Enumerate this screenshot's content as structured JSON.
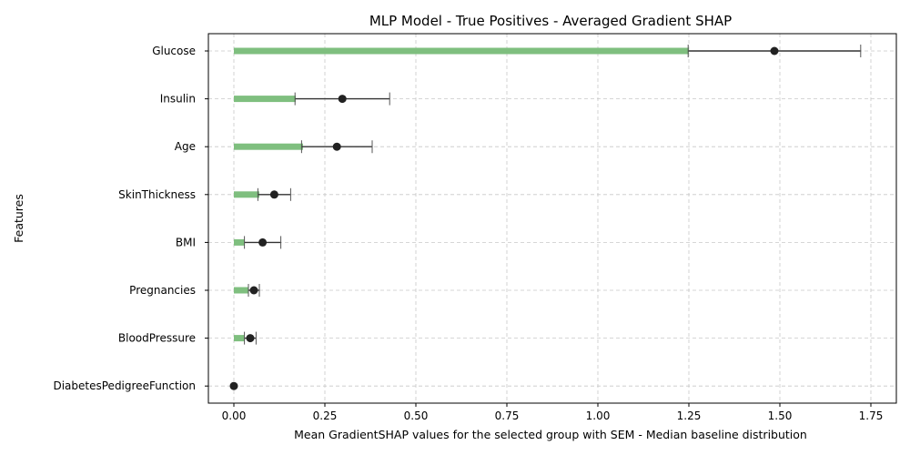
{
  "chart_data": {
    "type": "bar",
    "orientation": "horizontal",
    "title": "MLP Model - True Positives - Averaged Gradient SHAP",
    "xlabel": "Mean GradientSHAP values for the selected group with SEM - Median baseline distribution",
    "ylabel": "Features",
    "xlim": [
      -0.07,
      1.82
    ],
    "x_ticks": [
      0.0,
      0.25,
      0.5,
      0.75,
      1.0,
      1.25,
      1.5,
      1.75
    ],
    "x_tick_labels": [
      "0.00",
      "0.25",
      "0.50",
      "0.75",
      "1.00",
      "1.25",
      "1.50",
      "1.75"
    ],
    "grid": true,
    "bar_color": "#7fbf7f",
    "point_color": "#222222",
    "categories": [
      "Glucose",
      "Insulin",
      "Age",
      "SkinThickness",
      "BMI",
      "Pregnancies",
      "BloodPressure",
      "DiabetesPedigreeFunction"
    ],
    "values": [
      1.25,
      0.17,
      0.19,
      0.07,
      0.03,
      0.04,
      0.03,
      0.0
    ],
    "points": [
      1.485,
      0.298,
      0.283,
      0.111,
      0.079,
      0.055,
      0.045,
      0.0
    ],
    "error": [
      0.237,
      0.13,
      0.097,
      0.045,
      0.05,
      0.015,
      0.016,
      0.0
    ]
  }
}
